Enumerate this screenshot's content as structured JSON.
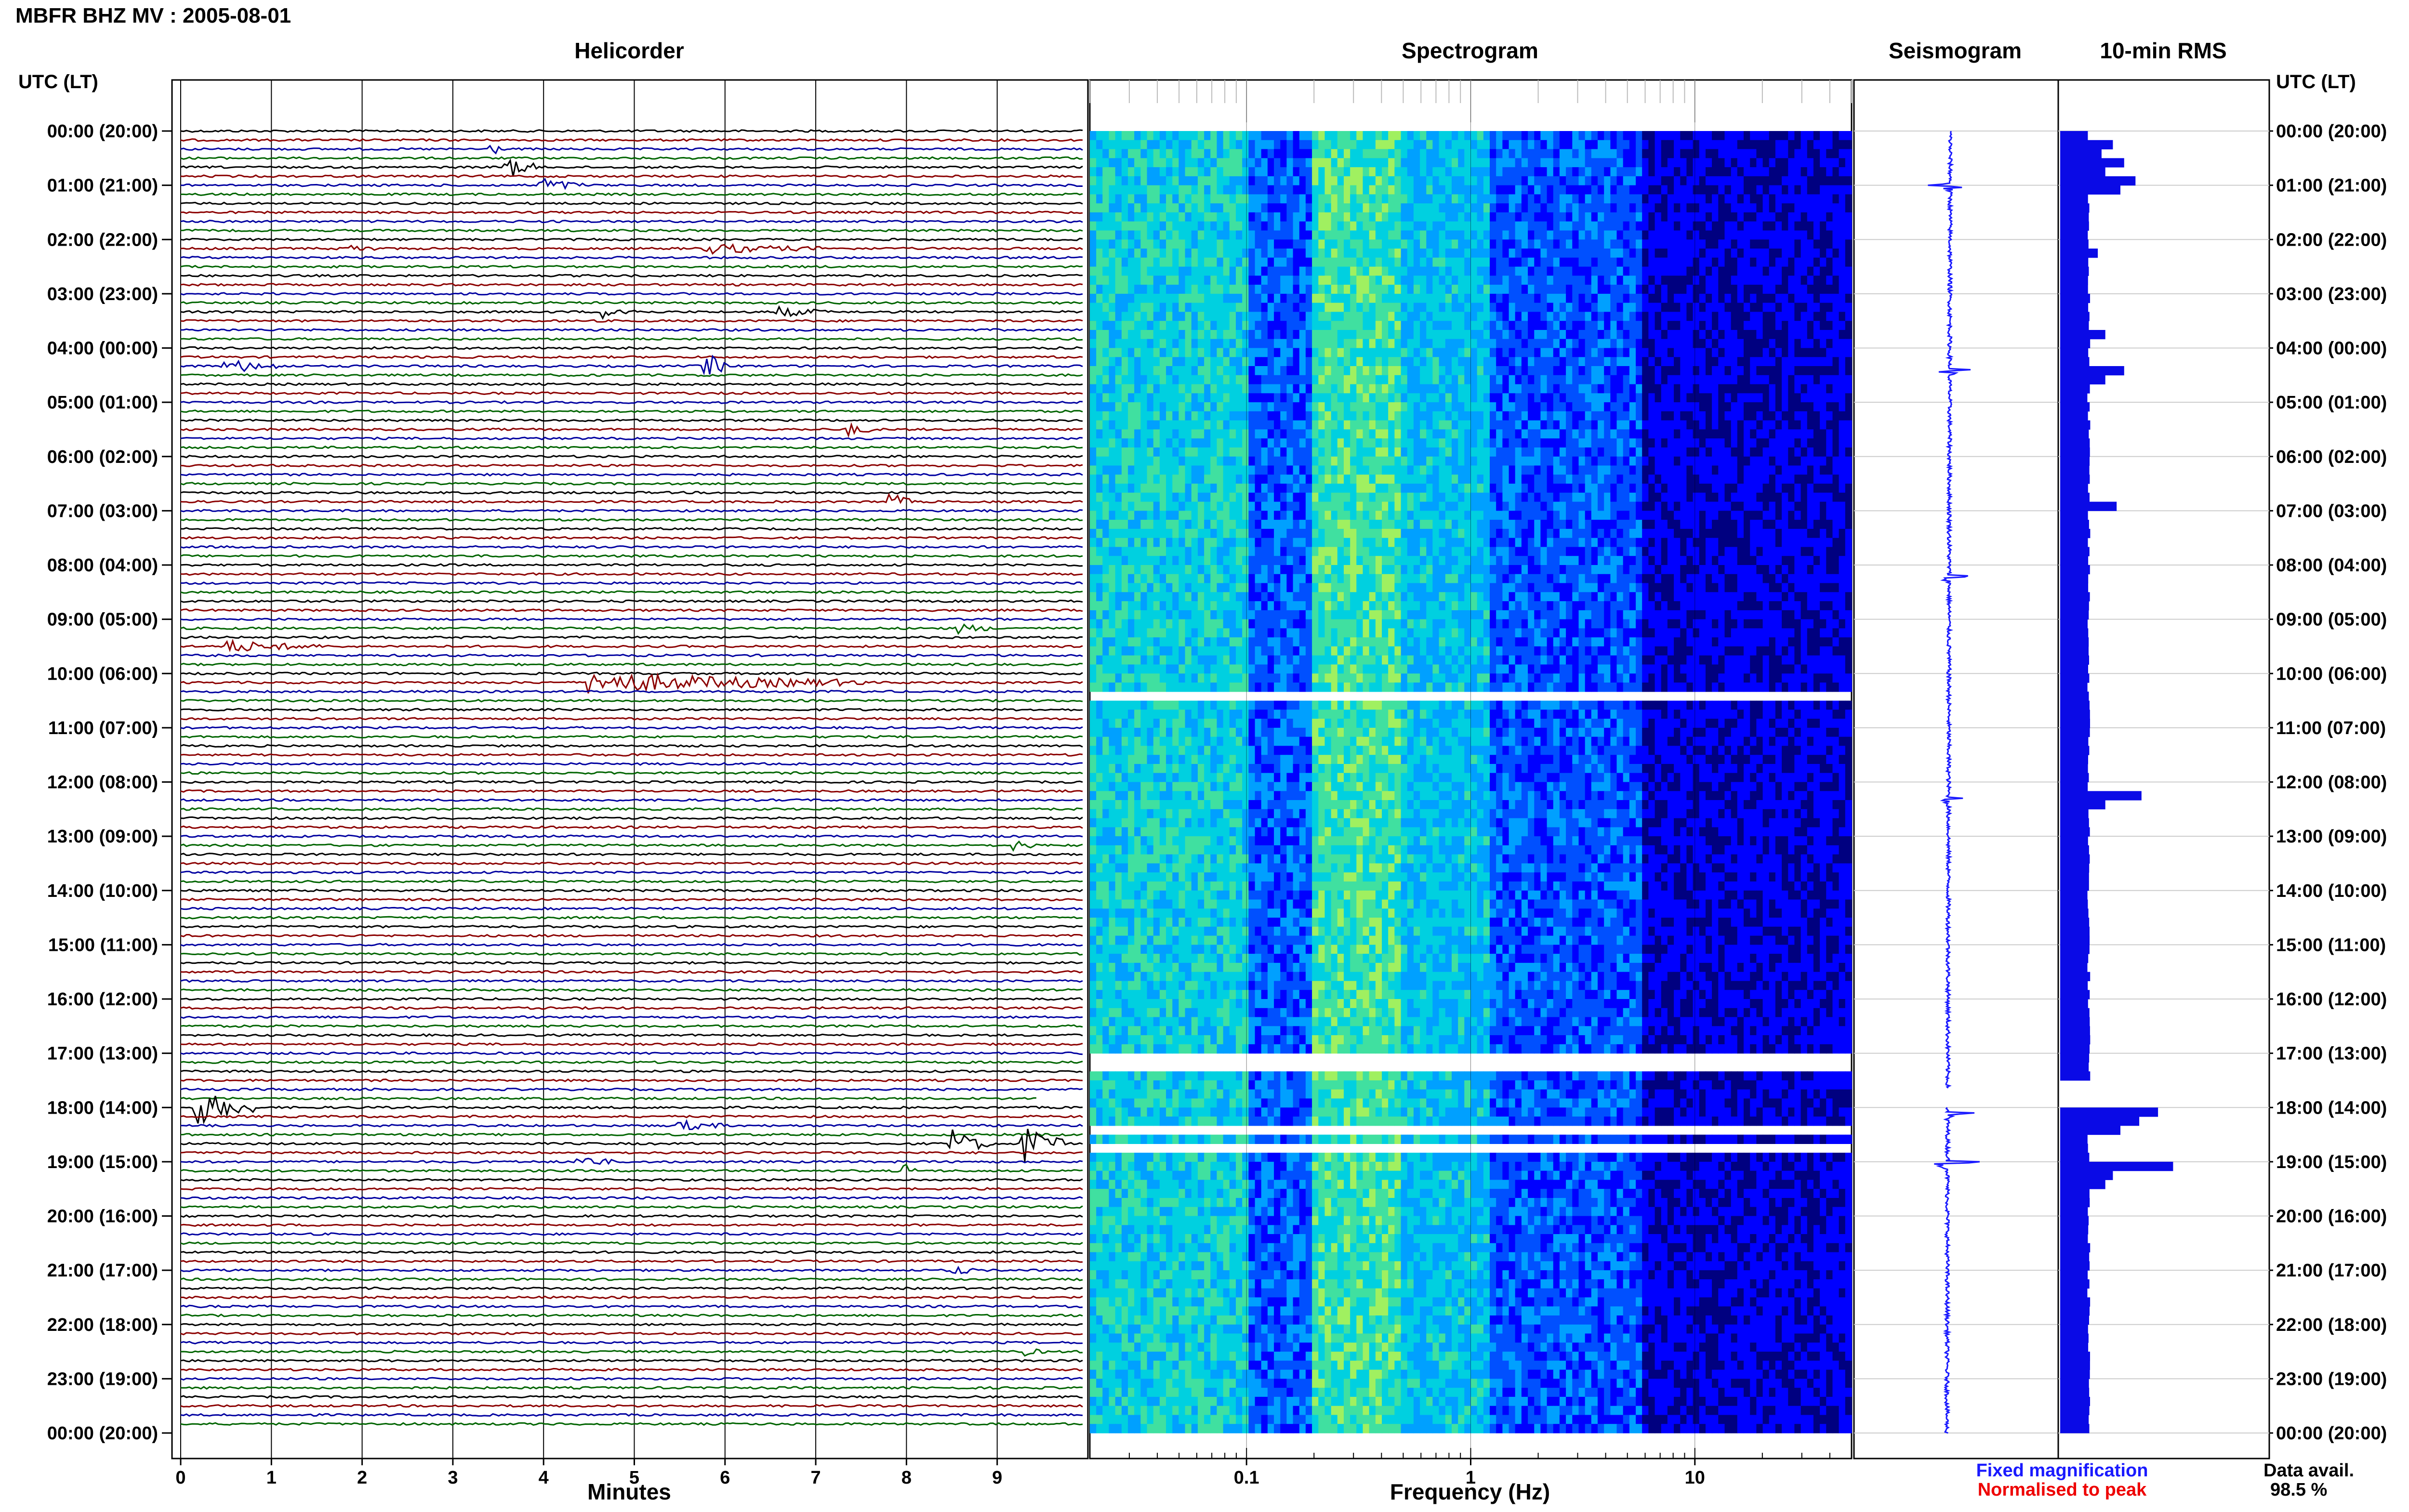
{
  "header": {
    "station_title": "MBFR BHZ MV : 2005-08-01"
  },
  "panels": {
    "helicorder": "Helicorder",
    "spectrogram": "Spectrogram",
    "seismogram": "Seismogram",
    "rms": "10-min RMS"
  },
  "utc_header_left": "UTC (LT)",
  "utc_header_right": "UTC (LT)",
  "time_labels": [
    "00:00 (20:00)",
    "01:00 (21:00)",
    "02:00 (22:00)",
    "03:00 (23:00)",
    "04:00 (00:00)",
    "05:00 (01:00)",
    "06:00 (02:00)",
    "07:00 (03:00)",
    "08:00 (04:00)",
    "09:00 (05:00)",
    "10:00 (06:00)",
    "11:00 (07:00)",
    "12:00 (08:00)",
    "13:00 (09:00)",
    "14:00 (10:00)",
    "15:00 (11:00)",
    "16:00 (12:00)",
    "17:00 (13:00)",
    "18:00 (14:00)",
    "19:00 (15:00)",
    "20:00 (16:00)",
    "21:00 (17:00)",
    "22:00 (18:00)",
    "23:00 (19:00)",
    "00:00 (20:00)"
  ],
  "axes": {
    "minutes_xlabel": "Minutes",
    "frequency_xlabel": "Frequency (Hz)"
  },
  "legend": {
    "fixed": "Fixed magnification",
    "normalised": "Normalised to peak"
  },
  "data_avail": {
    "label": "Data avail.",
    "value": "98.5 %"
  },
  "colors": {
    "trace_cycle": [
      "#000000",
      "#8b0000",
      "#0000a0",
      "#006400"
    ],
    "seismogram": "#1a1aff",
    "rms_bar": "#0a0ae6",
    "legend_blue": "#1a1aff",
    "legend_red": "#ee0000"
  },
  "chart_data": [
    {
      "type": "line",
      "title": "Helicorder",
      "xlabel": "Minutes",
      "xlim": [
        0,
        10
      ],
      "x_ticks": [
        "0",
        "1",
        "2",
        "3",
        "4",
        "5",
        "6",
        "7",
        "8",
        "9"
      ],
      "rows_per_hour": 6,
      "hours": 24,
      "gap_rows": [
        107
      ],
      "events": [
        {
          "row": 2,
          "minute": 3.45,
          "amp": 0.6,
          "dur": 0.05
        },
        {
          "row": 4,
          "minute": 3.6,
          "amp": 1.0,
          "dur": 0.3
        },
        {
          "row": 6,
          "minute": 4.0,
          "amp": 0.6,
          "dur": 0.4
        },
        {
          "row": 13,
          "minute": 1.9,
          "amp": 0.5,
          "dur": 0.2
        },
        {
          "row": 13,
          "minute": 5.8,
          "amp": 0.4,
          "dur": 1.2
        },
        {
          "row": 20,
          "minute": 4.7,
          "amp": 0.5,
          "dur": 0.4
        },
        {
          "row": 20,
          "minute": 6.6,
          "amp": 0.4,
          "dur": 0.5
        },
        {
          "row": 26,
          "minute": 0.5,
          "amp": 0.6,
          "dur": 0.6
        },
        {
          "row": 26,
          "minute": 5.8,
          "amp": 1.2,
          "dur": 0.2
        },
        {
          "row": 33,
          "minute": 7.4,
          "amp": 0.5,
          "dur": 0.2
        },
        {
          "row": 41,
          "minute": 7.8,
          "amp": 0.9,
          "dur": 0.2
        },
        {
          "row": 55,
          "minute": 8.6,
          "amp": 0.4,
          "dur": 0.3
        },
        {
          "row": 57,
          "minute": 0.5,
          "amp": 0.5,
          "dur": 1.0
        },
        {
          "row": 61,
          "minute": 4.5,
          "amp": 0.9,
          "dur": 3.0
        },
        {
          "row": 79,
          "minute": 9.2,
          "amp": 0.4,
          "dur": 0.2
        },
        {
          "row": 107,
          "minute": 9.6,
          "amp": 1.4,
          "dur": 0.4
        },
        {
          "row": 108,
          "minute": 0.2,
          "amp": 1.5,
          "dur": 0.6
        },
        {
          "row": 110,
          "minute": 5.5,
          "amp": 0.4,
          "dur": 0.5
        },
        {
          "row": 112,
          "minute": 8.5,
          "amp": 1.2,
          "dur": 0.4
        },
        {
          "row": 112,
          "minute": 9.3,
          "amp": 1.8,
          "dur": 0.4
        },
        {
          "row": 114,
          "minute": 4.4,
          "amp": 0.6,
          "dur": 0.3
        },
        {
          "row": 115,
          "minute": 8.0,
          "amp": 0.5,
          "dur": 0.1
        },
        {
          "row": 126,
          "minute": 8.5,
          "amp": 0.5,
          "dur": 0.2
        },
        {
          "row": 135,
          "minute": 9.3,
          "amp": 0.3,
          "dur": 0.2
        }
      ]
    },
    {
      "type": "heatmap",
      "title": "Spectrogram",
      "xlabel": "Frequency (Hz)",
      "x_scale": "log",
      "xlim": [
        0.02,
        50
      ],
      "x_ticks": [
        0.1,
        1,
        10
      ],
      "x_tick_labels": [
        "0.1",
        "1",
        "10"
      ],
      "rows": 144,
      "blank_rows": [
        62,
        102,
        103,
        110,
        112
      ],
      "colormap": [
        "#000080",
        "#0000ff",
        "#0050ff",
        "#00a0ff",
        "#00d0e0",
        "#40e0a0",
        "#a0f060"
      ]
    },
    {
      "type": "line",
      "title": "Seismogram",
      "legend": [
        "Fixed magnification",
        "Normalised to peak"
      ],
      "events_hour": [
        [
          1.0,
          0.6
        ],
        [
          4.4,
          0.5
        ],
        [
          8.2,
          0.6
        ],
        [
          12.3,
          0.4
        ],
        [
          18.1,
          0.6
        ],
        [
          19.0,
          1.0
        ]
      ],
      "gap_hours": [
        17.65,
        18.0
      ]
    },
    {
      "type": "bar",
      "title": "10-min RMS",
      "orientation": "horizontal",
      "rows": 144,
      "baseline": 0.38,
      "peaks": [
        {
          "row": 1,
          "value": 0.7
        },
        {
          "row": 2,
          "value": 0.55
        },
        {
          "row": 3,
          "value": 0.85
        },
        {
          "row": 4,
          "value": 0.6
        },
        {
          "row": 5,
          "value": 1.0
        },
        {
          "row": 6,
          "value": 0.8
        },
        {
          "row": 13,
          "value": 0.5
        },
        {
          "row": 22,
          "value": 0.6
        },
        {
          "row": 26,
          "value": 0.85
        },
        {
          "row": 27,
          "value": 0.6
        },
        {
          "row": 41,
          "value": 0.75
        },
        {
          "row": 73,
          "value": 1.08
        },
        {
          "row": 74,
          "value": 0.6
        },
        {
          "row": 108,
          "value": 1.3
        },
        {
          "row": 109,
          "value": 1.05
        },
        {
          "row": 110,
          "value": 0.8
        },
        {
          "row": 114,
          "value": 1.5
        },
        {
          "row": 115,
          "value": 0.7
        },
        {
          "row": 116,
          "value": 0.6
        }
      ],
      "gap_rows": [
        105,
        106,
        107
      ]
    }
  ],
  "data_availability": "98.5 %"
}
